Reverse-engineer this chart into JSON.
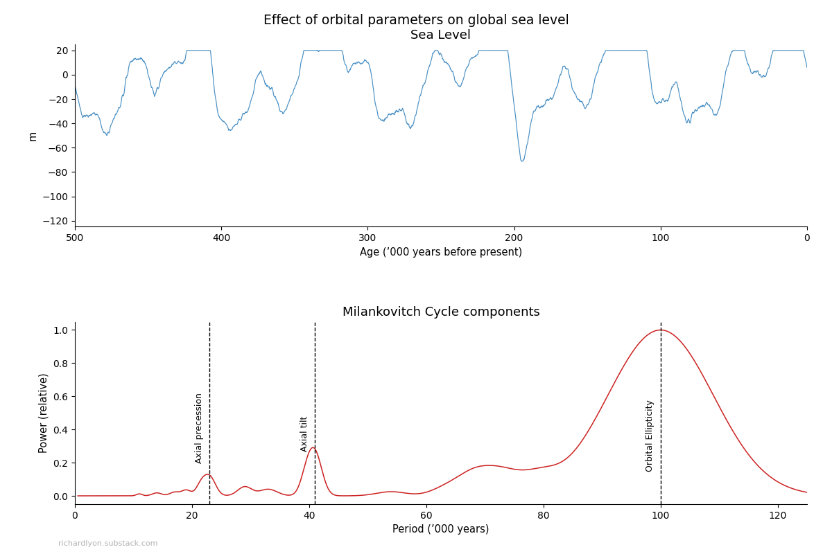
{
  "title": "Effect of orbital parameters on global sea level",
  "panel1_title": "Sea Level",
  "panel2_title": "Milankovitch Cycle components",
  "panel1_xlabel": "Age (’000 years before present)",
  "panel1_ylabel": "m",
  "panel2_xlabel": "Period (’000 years)",
  "panel2_ylabel": "Power (relative)",
  "sea_level_color": "#4a90c4",
  "spectrum_color": "#cc2222",
  "vline_color": "black",
  "vline_style": "--",
  "vlines_x": [
    23,
    41,
    100
  ],
  "vline_labels": [
    "Axial precession",
    "Axial tilt",
    "Orbital Ellipticity"
  ],
  "panel1_xlim": [
    500,
    0
  ],
  "panel1_ylim": [
    -125,
    25
  ],
  "panel1_yticks": [
    20,
    0,
    -20,
    -40,
    -60,
    -80,
    -100,
    -120
  ],
  "panel2_xlim": [
    0,
    125
  ],
  "panel2_ylim": [
    -0.05,
    1.05
  ],
  "panel2_yticks": [
    0.0,
    0.2,
    0.4,
    0.6,
    0.8,
    1.0
  ],
  "watermark": "richardlyon.substack.com"
}
